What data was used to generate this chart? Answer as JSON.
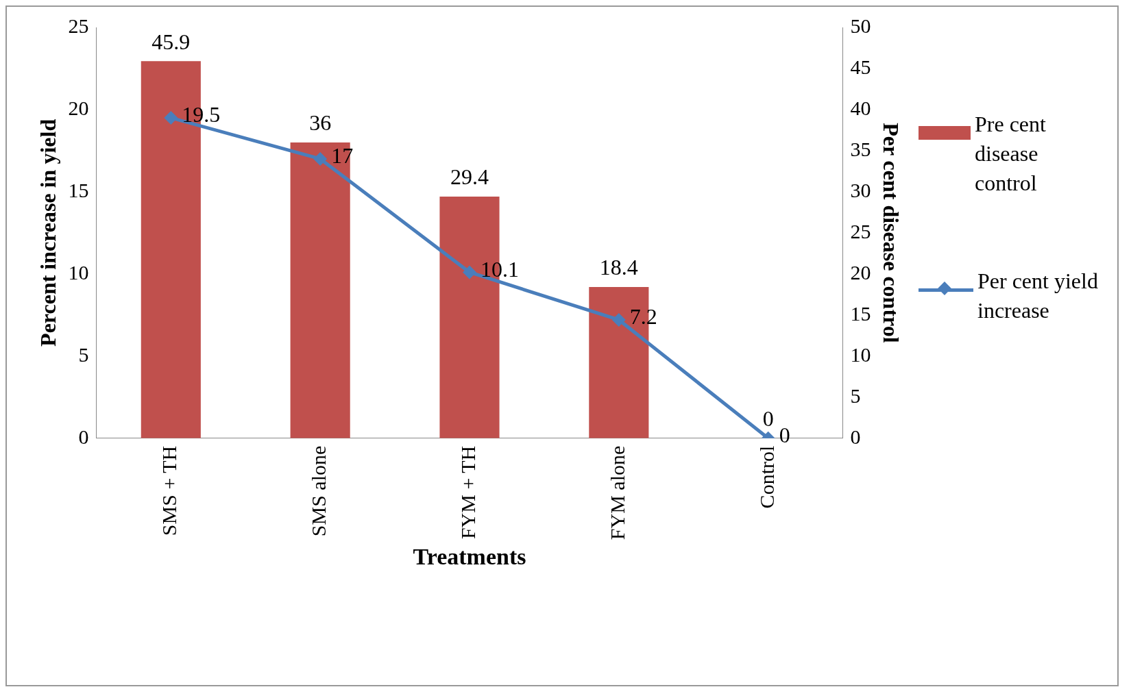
{
  "chart_data": {
    "type": "bar",
    "categories": [
      "SMS + TH",
      "SMS alone",
      "FYM + TH",
      "FYM alone",
      "Control"
    ],
    "series": [
      {
        "name": "Pre cent disease control",
        "axis": "y2",
        "color": "#c0504d",
        "values": [
          45.9,
          36,
          29.4,
          18.4,
          0
        ]
      },
      {
        "name": "Per cent yield increase",
        "type": "line",
        "axis": "y",
        "color": "#4a7ebb",
        "marker": "diamond",
        "values": [
          19.5,
          17,
          10.1,
          7.2,
          0
        ]
      }
    ],
    "xlabel": "Treatments",
    "ylabel": "Percent increase in yield",
    "y2label": "Per cent disease control",
    "ylim": [
      0,
      25
    ],
    "yticks": [
      0,
      5,
      10,
      15,
      20,
      25
    ],
    "y2lim": [
      0,
      50
    ],
    "y2ticks": [
      0,
      5,
      10,
      15,
      20,
      25,
      30,
      35,
      40,
      45,
      50
    ],
    "data_labels": true,
    "legend": "right",
    "grid": false
  }
}
